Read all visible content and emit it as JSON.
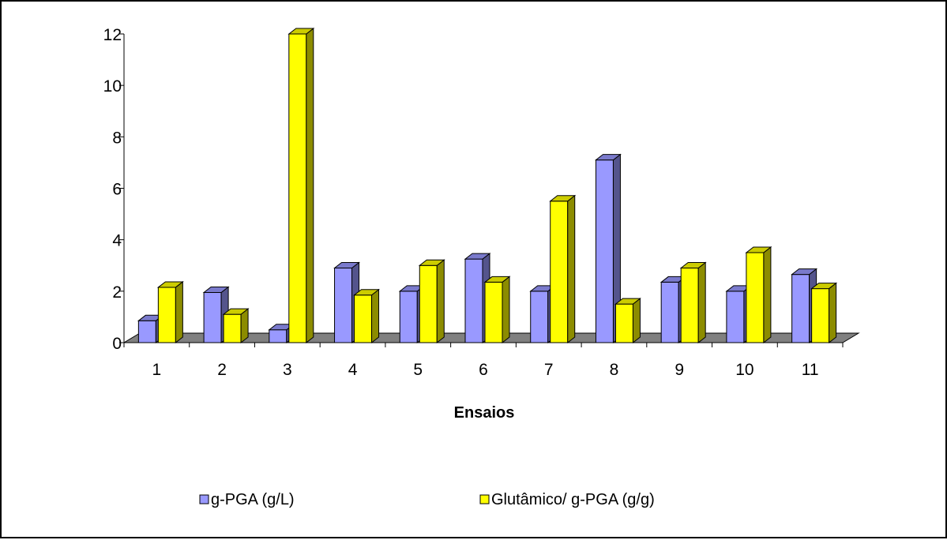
{
  "chart_data": {
    "type": "bar",
    "title": "",
    "xlabel": "Ensaios",
    "ylabel": "",
    "ylim": [
      0,
      12
    ],
    "yticks": [
      0,
      2,
      4,
      6,
      8,
      10,
      12
    ],
    "grid": false,
    "legend_position": "bottom",
    "categories": [
      "1",
      "2",
      "3",
      "4",
      "5",
      "6",
      "7",
      "8",
      "9",
      "10",
      "11"
    ],
    "series": [
      {
        "name": "g-PGA (g/L)",
        "color": "#9999ff",
        "values": [
          0.85,
          1.95,
          0.5,
          2.9,
          2.0,
          3.25,
          2.0,
          7.1,
          2.35,
          2.0,
          2.65
        ]
      },
      {
        "name": "Glutâmico/ g-PGA (g/g)",
        "color": "#ffff00",
        "values": [
          2.15,
          1.1,
          12.0,
          1.85,
          3.0,
          2.35,
          5.5,
          1.5,
          2.9,
          3.5,
          2.1
        ]
      }
    ],
    "floor_color": "#808080"
  }
}
